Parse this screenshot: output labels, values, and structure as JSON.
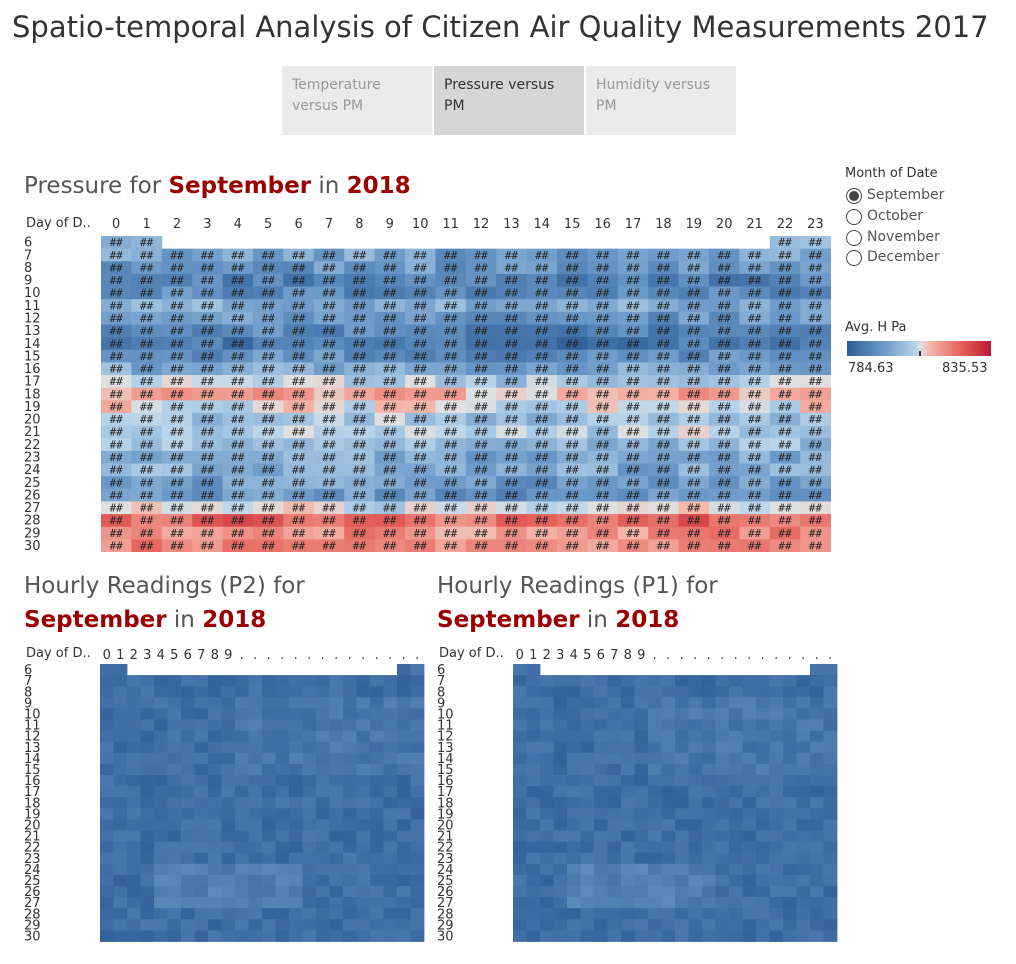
{
  "page": {
    "title": "Spatio-temporal Analysis of Citizen Air Quality Measurements 2017"
  },
  "tabs": [
    {
      "label": "Temperature versus PM",
      "active": false
    },
    {
      "label": "Pressure versus PM",
      "active": true
    },
    {
      "label": "Humidity versus PM",
      "active": false
    }
  ],
  "pressure": {
    "title_prefix": "Pressure for",
    "month": "September",
    "title_mid": "in",
    "year": "2018",
    "row_header": "Day of D..",
    "cell_text": "##"
  },
  "p2": {
    "title_prefix": "Hourly Readings (P2) for",
    "month": "September",
    "title_mid": "in",
    "year": "2018",
    "row_header": "Day of D.."
  },
  "p1": {
    "title_prefix": "Hourly Readings (P1) for",
    "month": "September",
    "title_mid": "in",
    "year": "2018",
    "row_header": "Day of D.."
  },
  "month_filter": {
    "title": "Month of Date",
    "options": [
      {
        "label": "September",
        "selected": true
      },
      {
        "label": "October",
        "selected": false
      },
      {
        "label": "November",
        "selected": false
      },
      {
        "label": "December",
        "selected": false
      }
    ]
  },
  "color_legend": {
    "title": "Avg. H Pa",
    "min": "784.63",
    "max": "835.53"
  },
  "colors": {
    "accent_red": "#9b0000",
    "low_blue": "#2d5f98",
    "mid": "#dddddd",
    "high_red": "#c21f32"
  },
  "chart_data": [
    {
      "type": "heatmap",
      "title": "Pressure for September in 2018",
      "measure": "Avg. H Pa",
      "xlabel": "",
      "ylabel": "Day of D..",
      "x": [
        0,
        1,
        2,
        3,
        4,
        5,
        6,
        7,
        8,
        9,
        10,
        11,
        12,
        13,
        14,
        15,
        16,
        17,
        18,
        19,
        20,
        21,
        22,
        23
      ],
      "y": [
        6,
        7,
        8,
        9,
        10,
        11,
        12,
        13,
        14,
        15,
        16,
        17,
        18,
        19,
        20,
        21,
        22,
        23,
        24,
        25,
        26,
        27,
        28,
        29,
        30
      ],
      "value_range": [
        784.63,
        835.53
      ],
      "row_levels": [
        0.42,
        0.3,
        0.25,
        0.17,
        0.2,
        0.34,
        0.25,
        0.2,
        0.13,
        0.22,
        0.33,
        0.45,
        0.62,
        0.52,
        0.42,
        0.45,
        0.4,
        0.33,
        0.35,
        0.28,
        0.25,
        0.5,
        0.78,
        0.68,
        0.7
      ],
      "missing": [
        [
          6,
          2
        ],
        [
          6,
          3
        ],
        [
          6,
          4
        ],
        [
          6,
          5
        ],
        [
          6,
          6
        ],
        [
          6,
          7
        ],
        [
          6,
          8
        ],
        [
          6,
          9
        ],
        [
          6,
          10
        ],
        [
          6,
          11
        ],
        [
          6,
          12
        ],
        [
          6,
          13
        ],
        [
          6,
          14
        ],
        [
          6,
          15
        ],
        [
          6,
          16
        ],
        [
          6,
          17
        ],
        [
          6,
          18
        ],
        [
          6,
          19
        ],
        [
          6,
          20
        ],
        [
          6,
          21
        ]
      ]
    },
    {
      "type": "heatmap",
      "title": "Hourly Readings (P2) for September in 2018",
      "ylabel": "Day of D..",
      "x_ticks": [
        "0",
        "1",
        "2",
        "3",
        "4",
        "5",
        "6",
        "7",
        "8",
        "9",
        ".",
        ".",
        ".",
        ".",
        ".",
        ".",
        ".",
        ".",
        ".",
        ".",
        ".",
        ".",
        ".",
        "."
      ],
      "y": [
        6,
        7,
        8,
        9,
        10,
        11,
        12,
        13,
        14,
        15,
        16,
        17,
        18,
        19,
        20,
        21,
        22,
        23,
        24,
        25,
        26,
        27,
        28,
        29,
        30
      ]
    },
    {
      "type": "heatmap",
      "title": "Hourly Readings (P1) for September in 2018",
      "ylabel": "Day of D..",
      "x_ticks": [
        "0",
        "1",
        "2",
        "3",
        "4",
        "5",
        "6",
        "7",
        "8",
        "9",
        ".",
        ".",
        ".",
        ".",
        ".",
        ".",
        ".",
        ".",
        ".",
        ".",
        ".",
        ".",
        ".",
        "."
      ],
      "y": [
        6,
        7,
        8,
        9,
        10,
        11,
        12,
        13,
        14,
        15,
        16,
        17,
        18,
        19,
        20,
        21,
        22,
        23,
        24,
        25,
        26,
        27,
        28,
        29,
        30
      ]
    }
  ]
}
